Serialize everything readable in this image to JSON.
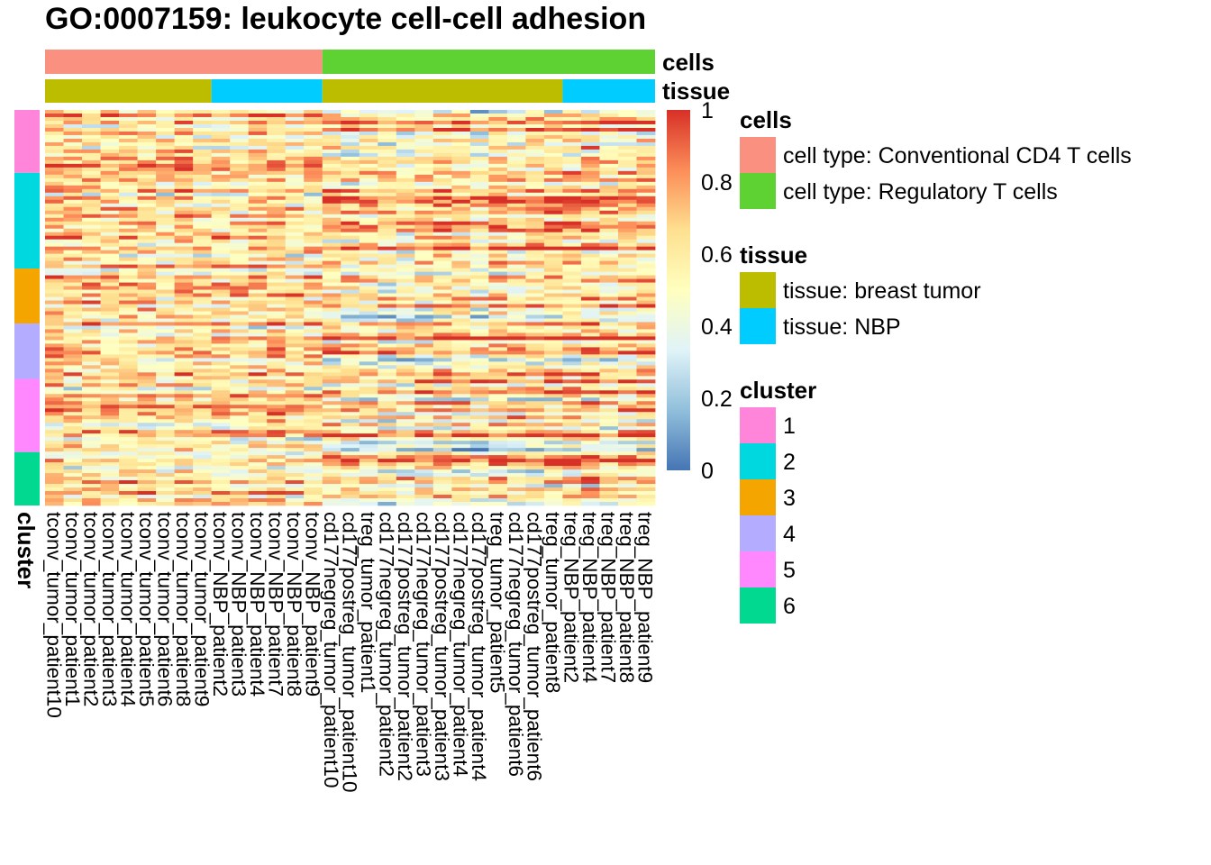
{
  "chart_data": {
    "type": "heatmap",
    "title": "GO:0007159: leukocyte cell-cell adhesion",
    "columns": [
      "tconv_tumor_patient10",
      "tconv_tumor_patient1",
      "tconv_tumor_patient2",
      "tconv_tumor_patient3",
      "tconv_tumor_patient4",
      "tconv_tumor_patient5",
      "tconv_tumor_patient6",
      "tconv_tumor_patient8",
      "tconv_tumor_patient9",
      "tconv_NBP_patient2",
      "tconv_NBP_patient3",
      "tconv_NBP_patient4",
      "tconv_NBP_patient7",
      "tconv_NBP_patient8",
      "tconv_NBP_patient9",
      "cd177negreg_tumor_patient10",
      "cd177postreg_tumor_patient10",
      "treg_tumor_patient1",
      "cd177negreg_tumor_patient2",
      "cd177postreg_tumor_patient2",
      "cd177negreg_tumor_patient3",
      "cd177postreg_tumor_patient3",
      "cd177negreg_tumor_patient4",
      "cd177postreg_tumor_patient4",
      "treg_tumor_patient5",
      "cd177negreg_tumor_patient6",
      "cd177postreg_tumor_patient6",
      "treg_tumor_patient8",
      "treg_NBP_patient2",
      "treg_NBP_patient4",
      "treg_NBP_patient7",
      "treg_NBP_patient8",
      "treg_NBP_patient9"
    ],
    "column_annotations": {
      "cells": {
        "label": "cells",
        "values_by_column": [
          "Conv",
          "Conv",
          "Conv",
          "Conv",
          "Conv",
          "Conv",
          "Conv",
          "Conv",
          "Conv",
          "Conv",
          "Conv",
          "Conv",
          "Conv",
          "Conv",
          "Conv",
          "Treg",
          "Treg",
          "Treg",
          "Treg",
          "Treg",
          "Treg",
          "Treg",
          "Treg",
          "Treg",
          "Treg",
          "Treg",
          "Treg",
          "Treg",
          "Treg",
          "Treg",
          "Treg",
          "Treg",
          "Treg"
        ]
      },
      "tissue": {
        "label": "tissue",
        "values_by_column": [
          "tumor",
          "tumor",
          "tumor",
          "tumor",
          "tumor",
          "tumor",
          "tumor",
          "tumor",
          "tumor",
          "NBP",
          "NBP",
          "NBP",
          "NBP",
          "NBP",
          "NBP",
          "tumor",
          "tumor",
          "tumor",
          "tumor",
          "tumor",
          "tumor",
          "tumor",
          "tumor",
          "tumor",
          "tumor",
          "tumor",
          "tumor",
          "tumor",
          "NBP",
          "NBP",
          "NBP",
          "NBP",
          "NBP"
        ]
      }
    },
    "row_annotation": {
      "label": "cluster",
      "cluster_fractions": [
        {
          "cluster": "1",
          "fraction": 0.159
        },
        {
          "cluster": "2",
          "fraction": 0.242
        },
        {
          "cluster": "3",
          "fraction": 0.139
        },
        {
          "cluster": "4",
          "fraction": 0.14
        },
        {
          "cluster": "5",
          "fraction": 0.185
        },
        {
          "cluster": "6",
          "fraction": 0.135
        }
      ]
    },
    "color_scale": {
      "min": 0,
      "max": 1,
      "ticks": [
        "0",
        "0.2",
        "0.4",
        "0.6",
        "0.8",
        "1"
      ],
      "stops": [
        "#4575B4",
        "#91BFDB",
        "#E0F3F8",
        "#FFFFBF",
        "#FEE090",
        "#FC8D59",
        "#D73027"
      ]
    },
    "legends": [
      {
        "title": "cells",
        "entries": [
          {
            "label": "cell type: Conventional CD4 T cells",
            "color": "#FA9080",
            "key": "Conv"
          },
          {
            "label": "cell type: Regulatory T cells",
            "color": "#5ED232",
            "key": "Treg"
          }
        ]
      },
      {
        "title": "tissue",
        "entries": [
          {
            "label": "tissue: breast tumor",
            "color": "#BDBD00",
            "key": "tumor"
          },
          {
            "label": "tissue: NBP",
            "color": "#00CCFF",
            "key": "NBP"
          }
        ]
      },
      {
        "title": "cluster",
        "entries": [
          {
            "label": "1",
            "color": "#FF85DB",
            "key": "1"
          },
          {
            "label": "2",
            "color": "#00D8E0",
            "key": "2"
          },
          {
            "label": "3",
            "color": "#F5A500",
            "key": "3"
          },
          {
            "label": "4",
            "color": "#B4ACFF",
            "key": "4"
          },
          {
            "label": "5",
            "color": "#FF88FF",
            "key": "5"
          },
          {
            "label": "6",
            "color": "#00D98F",
            "key": "6"
          }
        ]
      }
    ]
  }
}
